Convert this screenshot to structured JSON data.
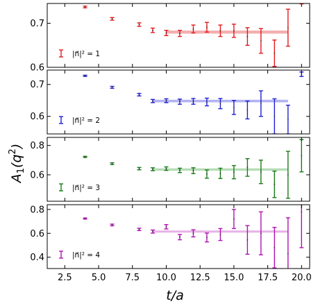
{
  "figure": {
    "ylabel": "A_1(q^2)",
    "xlabel": "t/a",
    "xlim": [
      1.2,
      20.6
    ],
    "xticks": [
      "2.5",
      "5.0",
      "7.5",
      "10.0",
      "12.5",
      "15.0",
      "17.5",
      "20.0"
    ],
    "xtick_values": [
      2.5,
      5.0,
      7.5,
      10.0,
      12.5,
      15.0,
      17.5,
      20.0
    ]
  },
  "chart_data": [
    {
      "type": "scatter",
      "legend": "|n⃗|² = 1",
      "legend_location": "lower-left",
      "color": "#e41a1c",
      "band_color": "#f2a0a0",
      "ylim": [
        0.6,
        0.745
      ],
      "yticks": [
        0.6,
        0.7
      ],
      "ytick_labels": [
        "0.6",
        "0.7"
      ],
      "band": {
        "x_start": 10,
        "x_end": 19,
        "value": 0.68,
        "half_width": 0.0035
      },
      "points": [
        {
          "t": 4,
          "y": 0.737,
          "err": 0.002
        },
        {
          "t": 6,
          "y": 0.71,
          "err": 0.003
        },
        {
          "t": 8,
          "y": 0.697,
          "err": 0.004
        },
        {
          "t": 9,
          "y": 0.684,
          "err": 0.005
        },
        {
          "t": 10,
          "y": 0.678,
          "err": 0.006
        },
        {
          "t": 11,
          "y": 0.677,
          "err": 0.007
        },
        {
          "t": 12,
          "y": 0.687,
          "err": 0.009
        },
        {
          "t": 13,
          "y": 0.691,
          "err": 0.011
        },
        {
          "t": 14,
          "y": 0.683,
          "err": 0.013
        },
        {
          "t": 15,
          "y": 0.683,
          "err": 0.015
        },
        {
          "t": 16,
          "y": 0.67,
          "err": 0.02
        },
        {
          "t": 17,
          "y": 0.66,
          "err": 0.028
        },
        {
          "t": 18,
          "y": 0.632,
          "err": 0.03
        },
        {
          "t": 19,
          "y": 0.69,
          "err": 0.042
        },
        {
          "t": 20,
          "y": 0.748,
          "err": 0.004
        }
      ]
    },
    {
      "type": "scatter",
      "legend": "|n⃗|² = 2",
      "legend_location": "lower-left",
      "color": "#1f1fd2",
      "band_color": "#a6a6f0",
      "ylim": [
        0.545,
        0.745
      ],
      "yticks": [
        0.6,
        0.7
      ],
      "ytick_labels": [
        "0.6",
        "0.7"
      ],
      "band": {
        "x_start": 9,
        "x_end": 19,
        "value": 0.648,
        "half_width": 0.004
      },
      "points": [
        {
          "t": 4,
          "y": 0.727,
          "err": 0.002
        },
        {
          "t": 6,
          "y": 0.691,
          "err": 0.003
        },
        {
          "t": 8,
          "y": 0.668,
          "err": 0.004
        },
        {
          "t": 9,
          "y": 0.648,
          "err": 0.005
        },
        {
          "t": 10,
          "y": 0.649,
          "err": 0.006
        },
        {
          "t": 11,
          "y": 0.646,
          "err": 0.008
        },
        {
          "t": 12,
          "y": 0.647,
          "err": 0.009
        },
        {
          "t": 13,
          "y": 0.645,
          "err": 0.012
        },
        {
          "t": 14,
          "y": 0.64,
          "err": 0.016
        },
        {
          "t": 15,
          "y": 0.628,
          "err": 0.022
        },
        {
          "t": 16,
          "y": 0.62,
          "err": 0.028
        },
        {
          "t": 17,
          "y": 0.64,
          "err": 0.04
        },
        {
          "t": 18,
          "y": 0.6,
          "err": 0.055
        },
        {
          "t": 19,
          "y": 0.59,
          "err": 0.045
        },
        {
          "t": 20,
          "y": 0.732,
          "err": 0.007
        }
      ]
    },
    {
      "type": "scatter",
      "legend": "|n⃗|² = 3",
      "legend_location": "lower-left",
      "color": "#1a7a1a",
      "band_color": "#a8d6a8",
      "ylim": [
        0.42,
        0.855
      ],
      "yticks": [
        0.6,
        0.8
      ],
      "ytick_labels": [
        "0.6",
        "0.8"
      ],
      "band": {
        "x_start": 9,
        "x_end": 19,
        "value": 0.636,
        "half_width": 0.008
      },
      "points": [
        {
          "t": 4,
          "y": 0.722,
          "err": 0.004
        },
        {
          "t": 6,
          "y": 0.676,
          "err": 0.006
        },
        {
          "t": 8,
          "y": 0.642,
          "err": 0.008
        },
        {
          "t": 9,
          "y": 0.638,
          "err": 0.01
        },
        {
          "t": 10,
          "y": 0.642,
          "err": 0.012
        },
        {
          "t": 11,
          "y": 0.63,
          "err": 0.015
        },
        {
          "t": 12,
          "y": 0.628,
          "err": 0.02
        },
        {
          "t": 13,
          "y": 0.605,
          "err": 0.028
        },
        {
          "t": 14,
          "y": 0.61,
          "err": 0.035
        },
        {
          "t": 15,
          "y": 0.618,
          "err": 0.045
        },
        {
          "t": 16,
          "y": 0.65,
          "err": 0.06
        },
        {
          "t": 17,
          "y": 0.62,
          "err": 0.08
        },
        {
          "t": 18,
          "y": 0.535,
          "err": 0.09
        },
        {
          "t": 19,
          "y": 0.6,
          "err": 0.16
        },
        {
          "t": 20,
          "y": 0.73,
          "err": 0.11
        }
      ]
    },
    {
      "type": "scatter",
      "legend": "|n⃗|² = 4",
      "legend_location": "lower-left",
      "color": "#b012b0",
      "band_color": "#e3a6e3",
      "ylim": [
        0.305,
        0.84
      ],
      "yticks": [
        0.4,
        0.6,
        0.8
      ],
      "ytick_labels": [
        "0.4",
        "0.6",
        "0.8"
      ],
      "band": {
        "x_start": 9,
        "x_end": 19,
        "value": 0.615,
        "half_width": 0.009
      },
      "points": [
        {
          "t": 4,
          "y": 0.724,
          "err": 0.005
        },
        {
          "t": 6,
          "y": 0.67,
          "err": 0.007
        },
        {
          "t": 8,
          "y": 0.633,
          "err": 0.01
        },
        {
          "t": 9,
          "y": 0.615,
          "err": 0.013
        },
        {
          "t": 10,
          "y": 0.655,
          "err": 0.018
        },
        {
          "t": 11,
          "y": 0.568,
          "err": 0.022
        },
        {
          "t": 12,
          "y": 0.6,
          "err": 0.03
        },
        {
          "t": 13,
          "y": 0.565,
          "err": 0.037
        },
        {
          "t": 14,
          "y": 0.59,
          "err": 0.05
        },
        {
          "t": 15,
          "y": 0.72,
          "err": 0.08
        },
        {
          "t": 16,
          "y": 0.545,
          "err": 0.12
        },
        {
          "t": 17,
          "y": 0.6,
          "err": 0.18
        },
        {
          "t": 18,
          "y": 0.48,
          "err": 0.17
        },
        {
          "t": 19,
          "y": 0.43,
          "err": 0.3
        },
        {
          "t": 20,
          "y": 0.78,
          "err": 0.3
        }
      ]
    }
  ]
}
